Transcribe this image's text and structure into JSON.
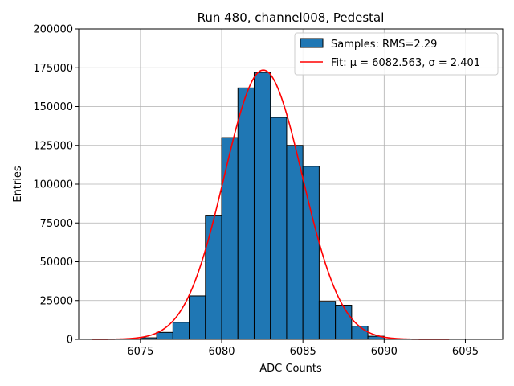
{
  "chart_data": {
    "type": "bar",
    "title": "Run 480, channel008, Pedestal",
    "xlabel": "ADC Counts",
    "ylabel": "Entries",
    "xlim": [
      6071.2,
      6097.3
    ],
    "ylim": [
      0,
      200000
    ],
    "xticks": [
      6075,
      6080,
      6085,
      6090,
      6095
    ],
    "yticks": [
      0,
      25000,
      50000,
      75000,
      100000,
      125000,
      150000,
      175000,
      200000
    ],
    "grid": true,
    "legend_position": "top-right",
    "bin_width": 1,
    "bins": [
      {
        "left": 6075,
        "count": 1000
      },
      {
        "left": 6076,
        "count": 4500
      },
      {
        "left": 6077,
        "count": 11000
      },
      {
        "left": 6078,
        "count": 28000
      },
      {
        "left": 6079,
        "count": 80000
      },
      {
        "left": 6080,
        "count": 130000
      },
      {
        "left": 6081,
        "count": 162000
      },
      {
        "left": 6082,
        "count": 172000
      },
      {
        "left": 6083,
        "count": 143000
      },
      {
        "left": 6084,
        "count": 125000
      },
      {
        "left": 6085,
        "count": 111500
      },
      {
        "left": 6086,
        "count": 24500
      },
      {
        "left": 6087,
        "count": 22000
      },
      {
        "left": 6088,
        "count": 8500
      },
      {
        "left": 6089,
        "count": 2000
      },
      {
        "left": 6090,
        "count": 300
      }
    ],
    "fit": {
      "mu": 6082.563,
      "sigma": 2.401,
      "peak": 173500,
      "x_range": [
        6072,
        6094
      ]
    },
    "series": [
      {
        "name": "Samples: RMS=2.29",
        "kind": "histogram",
        "color": "#1f77b4"
      },
      {
        "name": "Fit: μ = 6082.563, σ = 2.401",
        "kind": "line",
        "color": "#ff0000"
      }
    ]
  }
}
